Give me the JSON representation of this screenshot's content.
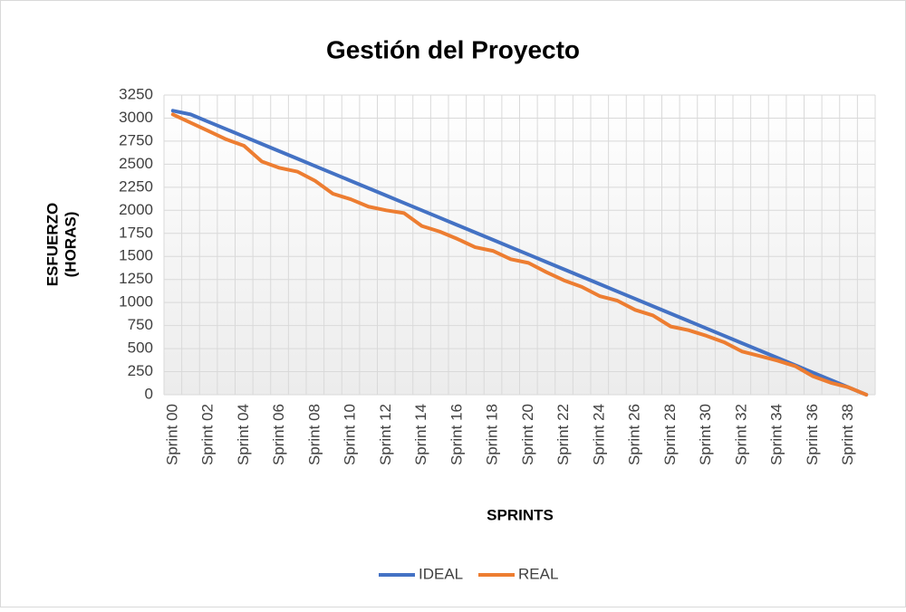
{
  "chart_data": {
    "type": "line",
    "title": "Gestión del Proyecto",
    "x_label": "SPRINTS",
    "y_label": [
      "ESFUERZO",
      "(HORAS)"
    ],
    "categories": [
      "Sprint 00",
      null,
      "Sprint 02",
      null,
      "Sprint 04",
      null,
      "Sprint 06",
      null,
      "Sprint 08",
      null,
      "Sprint 10",
      null,
      "Sprint 12",
      null,
      "Sprint 14",
      null,
      "Sprint 16",
      null,
      "Sprint 18",
      null,
      "Sprint 20",
      null,
      "Sprint 22",
      null,
      "Sprint 24",
      null,
      "Sprint 26",
      null,
      "Sprint 28",
      null,
      "Sprint 30",
      null,
      "Sprint 32",
      null,
      "Sprint 34",
      null,
      "Sprint 36",
      null,
      "Sprint 38",
      null
    ],
    "series": [
      {
        "name": "IDEAL",
        "color": "#4472c4",
        "values": [
          3080,
          3040,
          2960,
          2880,
          2800,
          2720,
          2640,
          2560,
          2480,
          2400,
          2320,
          2240,
          2160,
          2080,
          2000,
          1920,
          1840,
          1760,
          1680,
          1600,
          1520,
          1440,
          1360,
          1280,
          1200,
          1120,
          1040,
          960,
          880,
          800,
          720,
          640,
          560,
          480,
          400,
          320,
          240,
          160,
          80,
          0
        ]
      },
      {
        "name": "REAL",
        "color": "#ed7d31",
        "values": [
          3040,
          2950,
          2860,
          2770,
          2700,
          2530,
          2460,
          2420,
          2320,
          2180,
          2120,
          2040,
          2000,
          1970,
          1830,
          1770,
          1690,
          1600,
          1560,
          1470,
          1430,
          1330,
          1240,
          1170,
          1070,
          1020,
          920,
          860,
          740,
          700,
          640,
          570,
          470,
          420,
          370,
          310,
          200,
          130,
          80,
          0
        ]
      }
    ],
    "ylim": [
      0,
      3250
    ],
    "yticks": [
      0,
      250,
      500,
      750,
      1000,
      1250,
      1500,
      1750,
      2000,
      2250,
      2500,
      2750,
      3000,
      3250
    ],
    "grid": true,
    "legend": "bottom"
  }
}
